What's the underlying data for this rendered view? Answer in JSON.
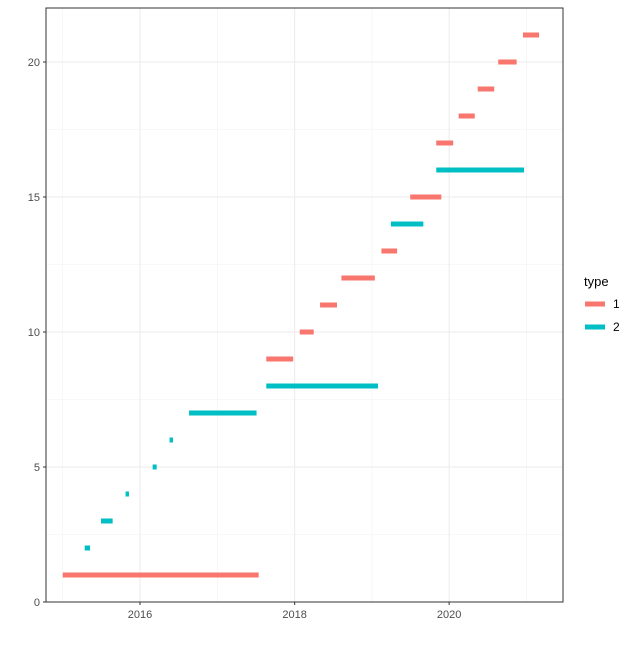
{
  "chart_data": {
    "type": "gantt",
    "x_axis": {
      "type": "date",
      "range": [
        "2014-10-14",
        "2021-06-22"
      ],
      "ticks": [
        {
          "value": "2016-01-01",
          "label": "2016"
        },
        {
          "value": "2018-01-01",
          "label": "2018"
        },
        {
          "value": "2020-01-01",
          "label": "2020"
        }
      ]
    },
    "y_axis": {
      "range": [
        0,
        22
      ],
      "ticks": [
        0,
        5,
        10,
        15,
        20
      ]
    },
    "grid": true,
    "legend": {
      "title": "type",
      "position": "right",
      "entries": [
        {
          "label": "1",
          "color": "#F8766D"
        },
        {
          "label": "2",
          "color": "#00BFC4"
        }
      ]
    },
    "colors": {
      "1": "#F8766D",
      "2": "#00BFC4"
    },
    "segments": [
      {
        "id": 1,
        "type": "1",
        "start": "2015-01-01",
        "end": "2017-07-15"
      },
      {
        "id": 2,
        "type": "2",
        "start": "2015-04-15",
        "end": "2015-05-10"
      },
      {
        "id": 3,
        "type": "2",
        "start": "2015-07-01",
        "end": "2015-08-25"
      },
      {
        "id": 4,
        "type": "2",
        "start": "2015-10-25",
        "end": "2015-11-10"
      },
      {
        "id": 5,
        "type": "2",
        "start": "2016-03-01",
        "end": "2016-03-20"
      },
      {
        "id": 6,
        "type": "2",
        "start": "2016-05-20",
        "end": "2016-06-05"
      },
      {
        "id": 7,
        "type": "2",
        "start": "2016-08-20",
        "end": "2017-07-05"
      },
      {
        "id": 8,
        "type": "2",
        "start": "2017-08-20",
        "end": "2019-01-30"
      },
      {
        "id": 9,
        "type": "1",
        "start": "2017-08-20",
        "end": "2017-12-25"
      },
      {
        "id": 10,
        "type": "1",
        "start": "2018-01-25",
        "end": "2018-04-01"
      },
      {
        "id": 11,
        "type": "1",
        "start": "2018-05-01",
        "end": "2018-07-20"
      },
      {
        "id": 12,
        "type": "1",
        "start": "2018-08-10",
        "end": "2019-01-15"
      },
      {
        "id": 13,
        "type": "1",
        "start": "2019-02-15",
        "end": "2019-04-30"
      },
      {
        "id": 14,
        "type": "2",
        "start": "2019-04-01",
        "end": "2019-09-01"
      },
      {
        "id": 15,
        "type": "1",
        "start": "2019-07-01",
        "end": "2019-11-25"
      },
      {
        "id": 16,
        "type": "2",
        "start": "2019-11-01",
        "end": "2020-12-20"
      },
      {
        "id": 17,
        "type": "1",
        "start": "2019-11-01",
        "end": "2020-01-20"
      },
      {
        "id": 18,
        "type": "1",
        "start": "2020-02-15",
        "end": "2020-05-01"
      },
      {
        "id": 19,
        "type": "1",
        "start": "2020-05-15",
        "end": "2020-08-01"
      },
      {
        "id": 20,
        "type": "1",
        "start": "2020-08-20",
        "end": "2020-11-15"
      },
      {
        "id": 21,
        "type": "1",
        "start": "2020-12-15",
        "end": "2021-03-01"
      }
    ]
  }
}
